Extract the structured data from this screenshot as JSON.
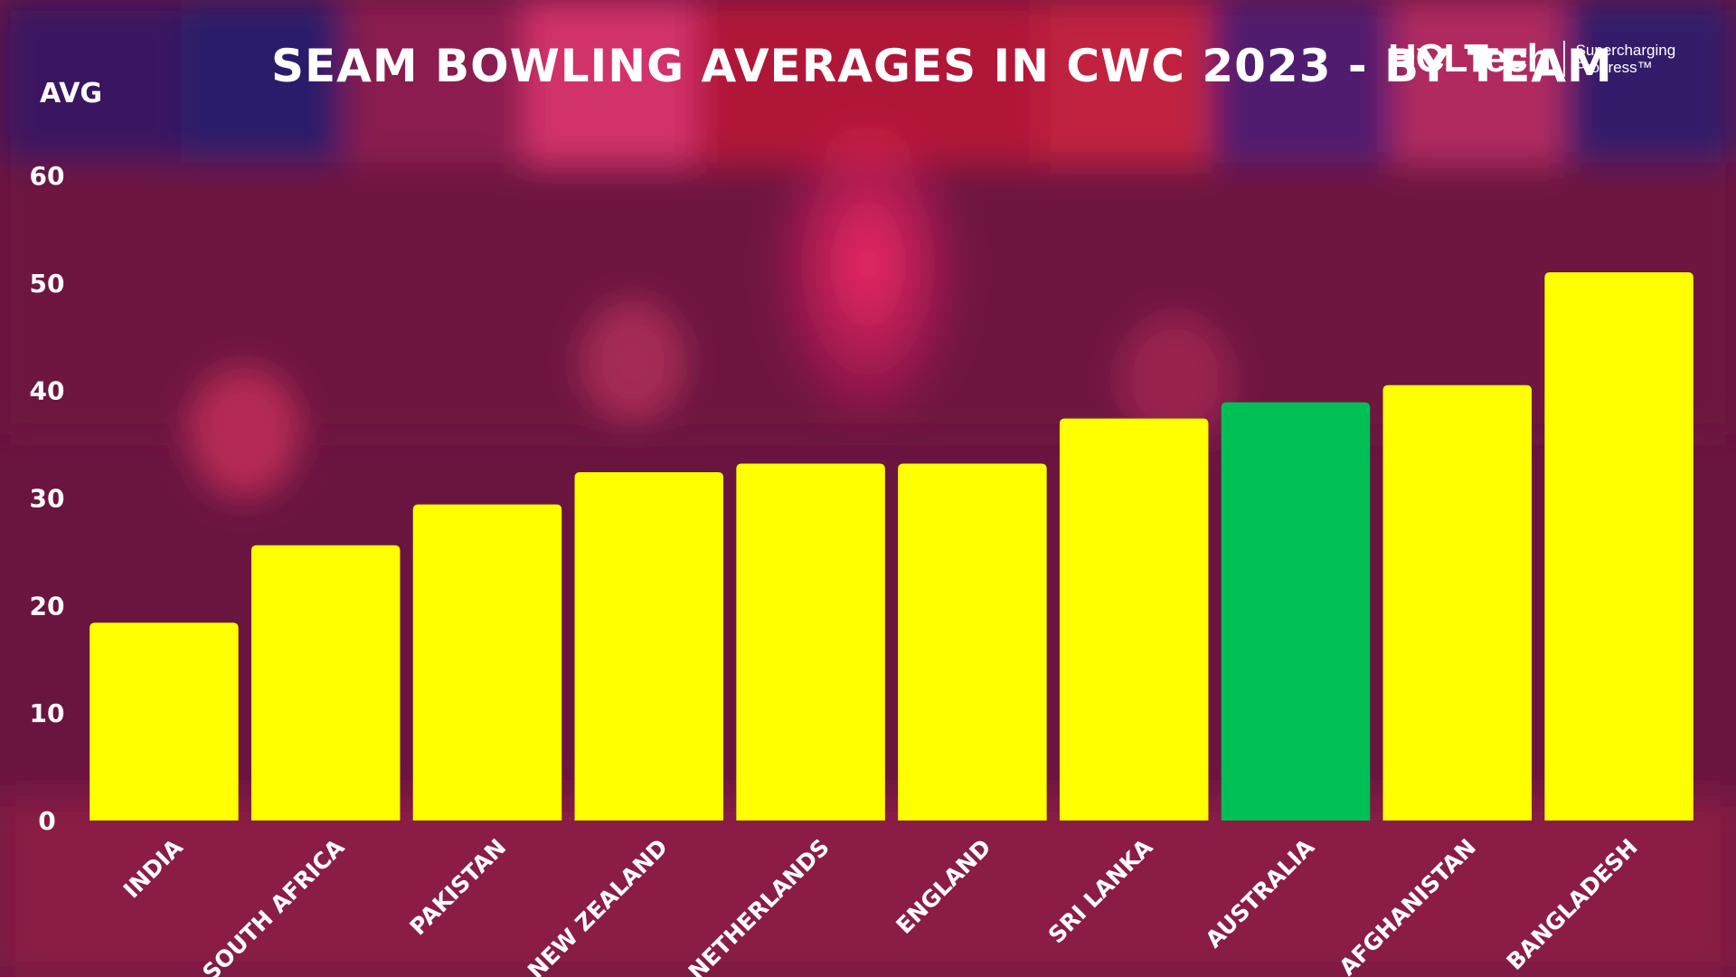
{
  "chart_data": {
    "type": "bar",
    "title": "SEAM BOWLING AVERAGES IN CWC 2023 - BY TEAM",
    "xlabel": "",
    "ylabel": "AVG",
    "ylim": [
      0,
      60
    ],
    "yticks": [
      0,
      10,
      20,
      30,
      40,
      50,
      60
    ],
    "grid": false,
    "categories": [
      "INDIA",
      "SOUTH AFRICA",
      "PAKISTAN",
      "NEW ZEALAND",
      "NETHERLANDS",
      "ENGLAND",
      "SRI LANKA",
      "AUSTRALIA",
      "AFGHANISTAN",
      "BANGLADESH"
    ],
    "values": [
      18.4,
      25.6,
      29.4,
      32.4,
      33.2,
      33.2,
      37.4,
      38.9,
      40.5,
      51.0
    ],
    "highlight_category": "AUSTRALIA",
    "bar_color": "#ffff00",
    "highlight_color": "#00bf55"
  },
  "logo": {
    "brand": "HCLTech",
    "tagline_line1": "Supercharging",
    "tagline_line2": "Progress™"
  }
}
